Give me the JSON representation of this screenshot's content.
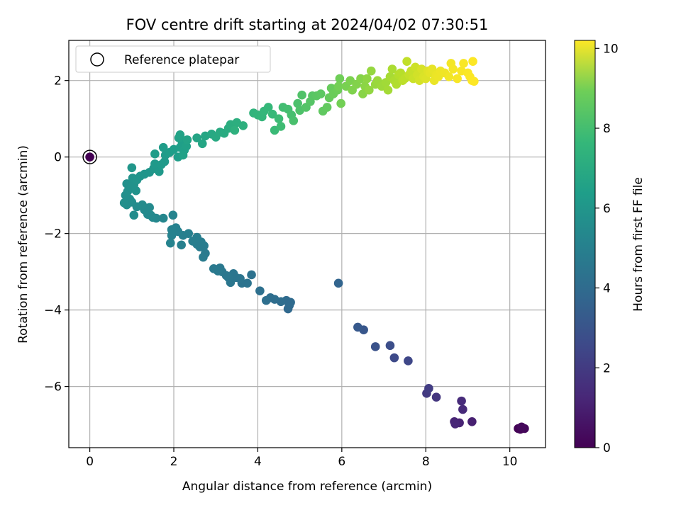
{
  "chart_data": {
    "type": "scatter",
    "title": "FOV centre drift starting at 2024/04/02 07:30:51",
    "xlabel": "Angular distance from reference (arcmin)",
    "ylabel": "Rotation from reference (arcmin)",
    "xlim": [
      -0.5,
      10.85
    ],
    "ylim": [
      -7.6,
      3.05
    ],
    "xticks": [
      0,
      2,
      4,
      6,
      8,
      10
    ],
    "yticks": [
      -6,
      -4,
      -2,
      0,
      2
    ],
    "grid": true,
    "legend": {
      "placement": "top-left",
      "entries": [
        "Reference platepar"
      ]
    },
    "colorbar": {
      "label": "Hours from first FF file",
      "min": 0,
      "max": 10.2,
      "ticks": [
        0,
        2,
        4,
        6,
        8,
        10
      ],
      "colormap": "viridis"
    },
    "reference_point": {
      "x": 0,
      "y": 0,
      "c": 0
    },
    "points": [
      [
        10.2,
        -7.1,
        0.05
      ],
      [
        10.25,
        -7.12,
        0.08
      ],
      [
        10.3,
        -7.08,
        0.12
      ],
      [
        10.35,
        -7.1,
        0.18
      ],
      [
        10.28,
        -7.06,
        0.22
      ],
      [
        9.1,
        -6.92,
        0.9
      ],
      [
        8.8,
        -6.95,
        1.0
      ],
      [
        8.68,
        -6.92,
        1.05
      ],
      [
        8.7,
        -6.98,
        1.1
      ],
      [
        8.88,
        -6.6,
        1.2
      ],
      [
        8.85,
        -6.38,
        1.25
      ],
      [
        8.25,
        -6.28,
        1.6
      ],
      [
        8.02,
        -6.18,
        1.75
      ],
      [
        8.07,
        -6.05,
        1.85
      ],
      [
        7.58,
        -5.33,
        2.2
      ],
      [
        7.25,
        -5.25,
        2.3
      ],
      [
        7.15,
        -4.93,
        2.45
      ],
      [
        6.8,
        -4.96,
        2.6
      ],
      [
        6.52,
        -4.52,
        2.75
      ],
      [
        6.38,
        -4.45,
        2.85
      ],
      [
        5.92,
        -3.3,
        3.3
      ],
      [
        4.72,
        -3.97,
        3.45
      ],
      [
        4.75,
        -3.88,
        3.5
      ],
      [
        4.78,
        -3.8,
        3.52
      ],
      [
        4.68,
        -3.75,
        3.55
      ],
      [
        4.55,
        -3.78,
        3.6
      ],
      [
        4.4,
        -3.72,
        3.65
      ],
      [
        4.3,
        -3.68,
        3.68
      ],
      [
        4.2,
        -3.75,
        3.7
      ],
      [
        4.05,
        -3.5,
        3.75
      ],
      [
        3.85,
        -3.08,
        3.85
      ],
      [
        3.75,
        -3.3,
        3.88
      ],
      [
        3.62,
        -3.3,
        3.9
      ],
      [
        3.58,
        -3.18,
        3.92
      ],
      [
        3.48,
        -3.15,
        3.95
      ],
      [
        3.42,
        -3.05,
        3.98
      ],
      [
        3.35,
        -3.28,
        4.0
      ],
      [
        3.3,
        -3.15,
        4.02
      ],
      [
        3.25,
        -3.1,
        4.05
      ],
      [
        3.15,
        -3.0,
        4.07
      ],
      [
        3.1,
        -2.9,
        4.1
      ],
      [
        3.05,
        -2.98,
        4.12
      ],
      [
        2.95,
        -2.92,
        4.15
      ],
      [
        2.75,
        -2.52,
        4.2
      ],
      [
        2.7,
        -2.62,
        4.22
      ],
      [
        2.72,
        -2.32,
        4.25
      ],
      [
        2.62,
        -2.35,
        4.27
      ],
      [
        2.65,
        -2.22,
        4.3
      ],
      [
        2.55,
        -2.28,
        4.32
      ],
      [
        2.55,
        -2.1,
        4.35
      ],
      [
        2.45,
        -2.2,
        4.37
      ],
      [
        2.35,
        -2.0,
        4.4
      ],
      [
        2.22,
        -2.05,
        4.42
      ],
      [
        2.18,
        -2.3,
        4.45
      ],
      [
        2.1,
        -1.95,
        4.47
      ],
      [
        2.05,
        -1.85,
        4.5
      ],
      [
        1.95,
        -1.9,
        4.52
      ],
      [
        1.95,
        -2.05,
        4.55
      ],
      [
        1.92,
        -2.25,
        4.57
      ],
      [
        1.98,
        -1.52,
        4.6
      ],
      [
        1.75,
        -1.6,
        4.7
      ],
      [
        1.58,
        -1.6,
        4.75
      ],
      [
        1.5,
        -1.58,
        4.78
      ],
      [
        1.45,
        -1.52,
        4.8
      ],
      [
        1.38,
        -1.5,
        4.82
      ],
      [
        1.42,
        -1.32,
        4.85
      ],
      [
        1.3,
        -1.38,
        4.87
      ],
      [
        1.25,
        -1.25,
        4.9
      ],
      [
        1.12,
        -1.3,
        4.92
      ],
      [
        1.05,
        -1.52,
        4.95
      ],
      [
        1.0,
        -1.18,
        4.97
      ],
      [
        0.95,
        -1.1,
        5.0
      ],
      [
        0.88,
        -1.25,
        5.02
      ],
      [
        0.82,
        -1.2,
        5.05
      ],
      [
        0.85,
        -1.0,
        5.07
      ],
      [
        0.9,
        -0.9,
        5.1
      ],
      [
        0.88,
        -0.7,
        5.12
      ],
      [
        0.98,
        -0.8,
        5.15
      ],
      [
        1.05,
        -0.72,
        5.17
      ],
      [
        1.1,
        -0.88,
        5.2
      ],
      [
        1.02,
        -0.55,
        5.22
      ],
      [
        1.12,
        -0.6,
        5.25
      ],
      [
        1.2,
        -0.5,
        5.27
      ],
      [
        1.3,
        -0.45,
        5.3
      ],
      [
        1.42,
        -0.4,
        5.32
      ],
      [
        1.0,
        -0.28,
        5.35
      ],
      [
        1.52,
        -0.3,
        5.4
      ],
      [
        1.55,
        -0.18,
        5.45
      ],
      [
        1.65,
        -0.38,
        5.48
      ],
      [
        1.7,
        -0.2,
        5.5
      ],
      [
        1.78,
        -0.12,
        5.52
      ],
      [
        1.8,
        0.05,
        5.55
      ],
      [
        1.75,
        0.25,
        5.58
      ],
      [
        1.55,
        0.08,
        5.6
      ],
      [
        1.9,
        0.12,
        5.62
      ],
      [
        2.0,
        0.2,
        5.65
      ],
      [
        2.1,
        0.0,
        5.68
      ],
      [
        2.15,
        0.25,
        5.7
      ],
      [
        2.2,
        0.35,
        5.72
      ],
      [
        2.25,
        0.18,
        5.75
      ],
      [
        2.3,
        0.28,
        5.78
      ],
      [
        2.22,
        0.05,
        5.8
      ],
      [
        2.12,
        0.5,
        5.82
      ],
      [
        2.15,
        0.58,
        5.85
      ],
      [
        2.32,
        0.45,
        5.88
      ],
      [
        2.55,
        0.5,
        5.95
      ],
      [
        2.68,
        0.35,
        6.0
      ],
      [
        2.75,
        0.55,
        6.05
      ],
      [
        2.9,
        0.6,
        6.1
      ],
      [
        3.0,
        0.52,
        6.15
      ],
      [
        3.1,
        0.65,
        6.2
      ],
      [
        3.2,
        0.62,
        6.25
      ],
      [
        3.3,
        0.75,
        6.3
      ],
      [
        3.35,
        0.85,
        6.35
      ],
      [
        3.5,
        0.9,
        6.4
      ],
      [
        3.65,
        0.82,
        6.45
      ],
      [
        3.45,
        0.7,
        6.48
      ],
      [
        3.9,
        1.15,
        6.6
      ],
      [
        4.0,
        1.1,
        6.65
      ],
      [
        4.1,
        1.05,
        6.7
      ],
      [
        4.15,
        1.2,
        6.75
      ],
      [
        4.25,
        1.3,
        6.8
      ],
      [
        4.35,
        1.12,
        6.85
      ],
      [
        4.4,
        0.7,
        6.9
      ],
      [
        4.5,
        1.0,
        6.95
      ],
      [
        4.55,
        0.8,
        7.0
      ],
      [
        4.6,
        1.3,
        7.05
      ],
      [
        4.72,
        1.25,
        7.1
      ],
      [
        4.8,
        1.1,
        7.15
      ],
      [
        4.85,
        0.95,
        7.2
      ],
      [
        4.95,
        1.4,
        7.25
      ],
      [
        5.0,
        1.22,
        7.3
      ],
      [
        5.05,
        1.62,
        7.35
      ],
      [
        5.15,
        1.3,
        7.4
      ],
      [
        5.25,
        1.45,
        7.45
      ],
      [
        5.3,
        1.6,
        7.5
      ],
      [
        5.4,
        1.6,
        7.55
      ],
      [
        5.5,
        1.65,
        7.6
      ],
      [
        5.55,
        1.2,
        7.65
      ],
      [
        5.65,
        1.3,
        7.7
      ],
      [
        5.7,
        1.55,
        7.75
      ],
      [
        5.75,
        1.8,
        7.8
      ],
      [
        5.8,
        1.65,
        7.85
      ],
      [
        5.9,
        1.75,
        7.9
      ],
      [
        5.95,
        2.05,
        7.95
      ],
      [
        5.98,
        1.4,
        8.0
      ],
      [
        5.92,
        1.85,
        8.02
      ],
      [
        6.1,
        1.85,
        8.1
      ],
      [
        6.2,
        2.0,
        8.15
      ],
      [
        6.25,
        1.75,
        8.2
      ],
      [
        6.35,
        1.9,
        8.25
      ],
      [
        6.45,
        2.05,
        8.3
      ],
      [
        6.5,
        1.65,
        8.35
      ],
      [
        6.55,
        1.85,
        8.4
      ],
      [
        6.6,
        2.05,
        8.45
      ],
      [
        6.65,
        1.75,
        8.5
      ],
      [
        6.7,
        2.25,
        8.55
      ],
      [
        6.8,
        1.9,
        8.6
      ],
      [
        6.85,
        2.0,
        8.65
      ],
      [
        6.95,
        1.85,
        8.7
      ],
      [
        7.05,
        1.95,
        8.75
      ],
      [
        7.1,
        1.75,
        8.8
      ],
      [
        7.15,
        2.1,
        8.85
      ],
      [
        7.2,
        2.3,
        8.9
      ],
      [
        7.25,
        2.0,
        8.95
      ],
      [
        7.3,
        1.9,
        9.0
      ],
      [
        7.35,
        2.15,
        9.05
      ],
      [
        7.4,
        2.2,
        9.1
      ],
      [
        7.45,
        2.0,
        9.15
      ],
      [
        7.5,
        2.05,
        9.2
      ],
      [
        7.55,
        2.5,
        9.25
      ],
      [
        7.6,
        2.15,
        9.3
      ],
      [
        7.65,
        2.25,
        9.35
      ],
      [
        7.7,
        2.05,
        9.4
      ],
      [
        7.75,
        2.35,
        9.45
      ],
      [
        7.8,
        2.15,
        9.5
      ],
      [
        7.85,
        2.0,
        9.55
      ],
      [
        7.9,
        2.3,
        9.6
      ],
      [
        7.95,
        2.1,
        9.65
      ],
      [
        8.0,
        2.05,
        9.7
      ],
      [
        8.05,
        2.25,
        9.75
      ],
      [
        8.1,
        2.2,
        9.8
      ],
      [
        8.15,
        2.3,
        9.85
      ],
      [
        8.2,
        2.0,
        9.9
      ],
      [
        8.25,
        2.15,
        9.92
      ],
      [
        8.3,
        2.1,
        9.95
      ],
      [
        8.35,
        2.25,
        9.97
      ],
      [
        8.45,
        2.2,
        10.0
      ],
      [
        8.55,
        2.1,
        10.02
      ],
      [
        8.6,
        2.45,
        10.05
      ],
      [
        8.65,
        2.3,
        10.07
      ],
      [
        8.75,
        2.05,
        10.1
      ],
      [
        8.85,
        2.25,
        10.12
      ],
      [
        8.9,
        2.45,
        10.14
      ],
      [
        9.0,
        2.2,
        10.16
      ],
      [
        9.05,
        2.1,
        10.17
      ],
      [
        9.1,
        2.0,
        10.18
      ],
      [
        9.12,
        2.5,
        10.19
      ],
      [
        9.15,
        1.98,
        10.2
      ]
    ]
  }
}
